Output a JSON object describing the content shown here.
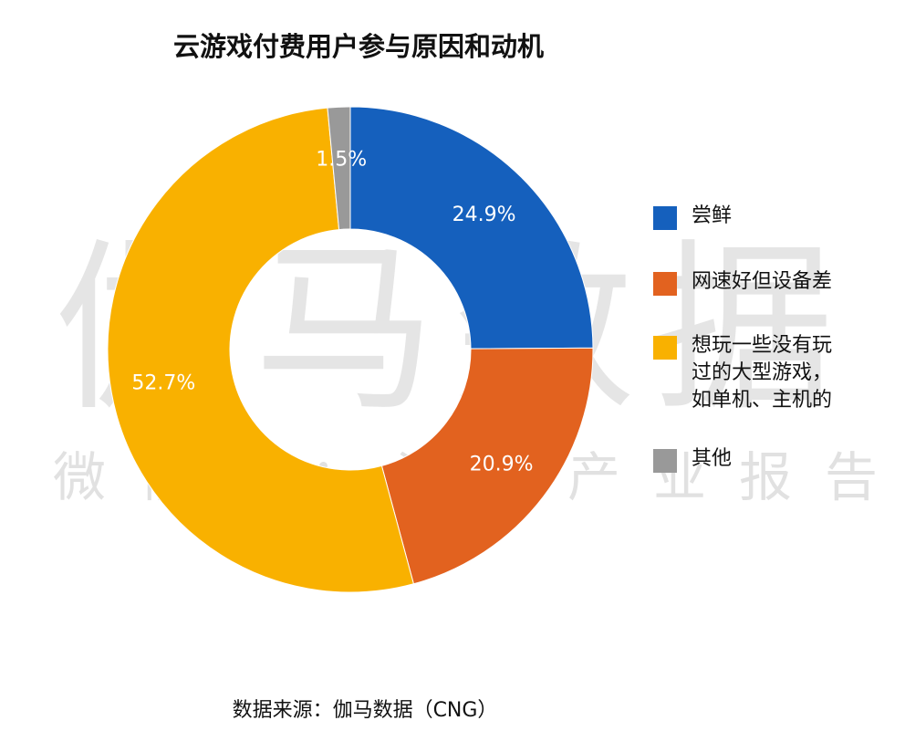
{
  "watermark": {
    "main": "伽马数据",
    "sub": "微信号：游戏产业报告"
  },
  "source": "数据来源：伽马数据（CNG）",
  "chart_data": {
    "type": "pie",
    "title": "云游戏付费用户参与原因和动机",
    "donut": true,
    "legend_placement": "right",
    "slices": [
      {
        "label": "尝鲜",
        "value": 24.9,
        "value_label": "24.9%",
        "color": "#1560bd"
      },
      {
        "label": "网速好但设备差",
        "value": 20.9,
        "value_label": "20.9%",
        "color": "#e2621f"
      },
      {
        "label": "想玩一些没有玩过的大型游戏，如单机、主机的",
        "value": 52.7,
        "value_label": "52.7%",
        "color": "#f9b100"
      },
      {
        "label": "其他",
        "value": 1.5,
        "value_label": "1.5%",
        "color": "#999999"
      }
    ]
  }
}
